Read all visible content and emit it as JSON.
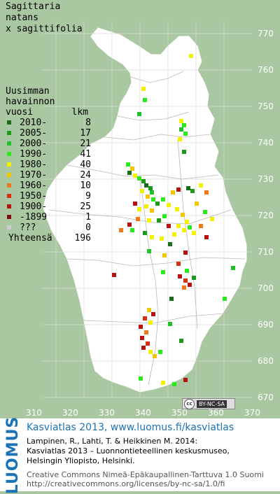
{
  "species": [
    "Sagittaria",
    "natans",
    "x sagittifolia"
  ],
  "legend": {
    "heading": [
      "Uusimman",
      "havainnon"
    ],
    "col_year": "vuosi",
    "col_count": "lkm",
    "rows": [
      {
        "label": "2010-",
        "count": "8",
        "color": "#1e6b1e"
      },
      {
        "label": "2005-",
        "count": "17",
        "color": "#1c9a1c"
      },
      {
        "label": "2000-",
        "count": "21",
        "color": "#22c02a"
      },
      {
        "label": "1990-",
        "count": "41",
        "color": "#2ee81e"
      },
      {
        "label": "1980-",
        "count": "40",
        "color": "#f2f200"
      },
      {
        "label": "1970-",
        "count": "24",
        "color": "#f2c600"
      },
      {
        "label": "1960-",
        "count": "10",
        "color": "#f07818"
      },
      {
        "label": "1950-",
        "count": "9",
        "color": "#d8300e"
      },
      {
        "label": "1900-",
        "count": "25",
        "color": "#b4120c"
      },
      {
        "label": "-1899",
        "count": "1",
        "color": "#8a0a14"
      },
      {
        "label": "???",
        "count": "0",
        "color": "#cccccc"
      }
    ],
    "total_label": "Yhteensä",
    "total_count": "196"
  },
  "grid": {
    "y_ticks": [
      "770",
      "760",
      "750",
      "740",
      "730",
      "720",
      "710",
      "700",
      "690",
      "680",
      "670"
    ],
    "x_ticks": [
      "310",
      "320",
      "330",
      "340",
      "350",
      "360",
      "370"
    ]
  },
  "cc_badge": {
    "cc": "cc",
    "license": "BY-NC-SA"
  },
  "footer": {
    "logo": "LUOMUS",
    "title": "Kasviatlas 2013, www.luomus.fi/kasviatlas",
    "citation": [
      "Lampinen, R., Lahti, T. & Heikkinen M. 2014:",
      "Kasviatlas 2013 – Luonnontieteellinen keskusmuseo,",
      "Helsingin Yliopisto, Helsinki."
    ],
    "license": [
      "Creative Commons Nimeä-Epäkaupallinen-Tarttuva 1.0 Suomi",
      "http://creativecommons.org/licenses/by-nc-sa/1.0/fi"
    ]
  }
}
